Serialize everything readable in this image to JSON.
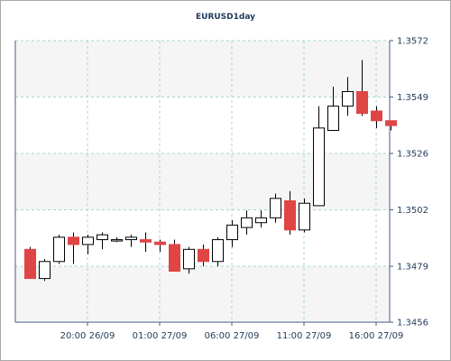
{
  "chart_data": {
    "type": "candlestick",
    "title": "EURUSD1day",
    "x_tick_labels": [
      "20:00 26/09",
      "01:00 27/09",
      "06:00 27/09",
      "11:00 27/09",
      "16:00 27/09"
    ],
    "y_tick_labels": [
      "1.3572",
      "1.3549",
      "1.3526",
      "1.3502",
      "1.3479",
      "1.3456"
    ],
    "ylim": [
      1.3456,
      1.3572
    ],
    "grid": true,
    "legend": "none",
    "colors": {
      "bullish_body": "#ffffff",
      "bearish_body": "#e04545",
      "outline": "#000000",
      "grid": "#a8d4d4",
      "band": "#f5f5f5",
      "axis": "#4a5a8a"
    },
    "candles": [
      {
        "open": 1.3486,
        "high": 1.3487,
        "low": 1.3474,
        "close": 1.3474
      },
      {
        "open": 1.3474,
        "high": 1.3482,
        "low": 1.3473,
        "close": 1.3481
      },
      {
        "open": 1.3481,
        "high": 1.3492,
        "low": 1.348,
        "close": 1.3491
      },
      {
        "open": 1.3491,
        "high": 1.3493,
        "low": 1.348,
        "close": 1.3488
      },
      {
        "open": 1.3488,
        "high": 1.3492,
        "low": 1.3484,
        "close": 1.3491
      },
      {
        "open": 1.349,
        "high": 1.3493,
        "low": 1.3486,
        "close": 1.3492
      },
      {
        "open": 1.349,
        "high": 1.3491,
        "low": 1.3489,
        "close": 1.349
      },
      {
        "open": 1.349,
        "high": 1.3492,
        "low": 1.3487,
        "close": 1.3491
      },
      {
        "open": 1.349,
        "high": 1.3493,
        "low": 1.3485,
        "close": 1.3489
      },
      {
        "open": 1.3489,
        "high": 1.349,
        "low": 1.3485,
        "close": 1.3488
      },
      {
        "open": 1.3488,
        "high": 1.349,
        "low": 1.3477,
        "close": 1.3477
      },
      {
        "open": 1.3478,
        "high": 1.3487,
        "low": 1.3476,
        "close": 1.3486
      },
      {
        "open": 1.3486,
        "high": 1.3488,
        "low": 1.3479,
        "close": 1.3481
      },
      {
        "open": 1.3481,
        "high": 1.3491,
        "low": 1.3479,
        "close": 1.349
      },
      {
        "open": 1.349,
        "high": 1.3498,
        "low": 1.3487,
        "close": 1.3496
      },
      {
        "open": 1.3495,
        "high": 1.3502,
        "low": 1.3492,
        "close": 1.3499
      },
      {
        "open": 1.3497,
        "high": 1.3502,
        "low": 1.3495,
        "close": 1.3499
      },
      {
        "open": 1.3499,
        "high": 1.3509,
        "low": 1.3497,
        "close": 1.3507
      },
      {
        "open": 1.3506,
        "high": 1.351,
        "low": 1.3492,
        "close": 1.3494
      },
      {
        "open": 1.3494,
        "high": 1.3507,
        "low": 1.3493,
        "close": 1.3505
      },
      {
        "open": 1.3504,
        "high": 1.3545,
        "low": 1.3504,
        "close": 1.3536
      },
      {
        "open": 1.3535,
        "high": 1.3553,
        "low": 1.3535,
        "close": 1.3545
      },
      {
        "open": 1.3545,
        "high": 1.3557,
        "low": 1.3541,
        "close": 1.3551
      },
      {
        "open": 1.3551,
        "high": 1.3564,
        "low": 1.3541,
        "close": 1.3542
      },
      {
        "open": 1.3543,
        "high": 1.3545,
        "low": 1.3536,
        "close": 1.3539
      },
      {
        "open": 1.3539,
        "high": 1.3539,
        "low": 1.3535,
        "close": 1.3537
      }
    ]
  }
}
